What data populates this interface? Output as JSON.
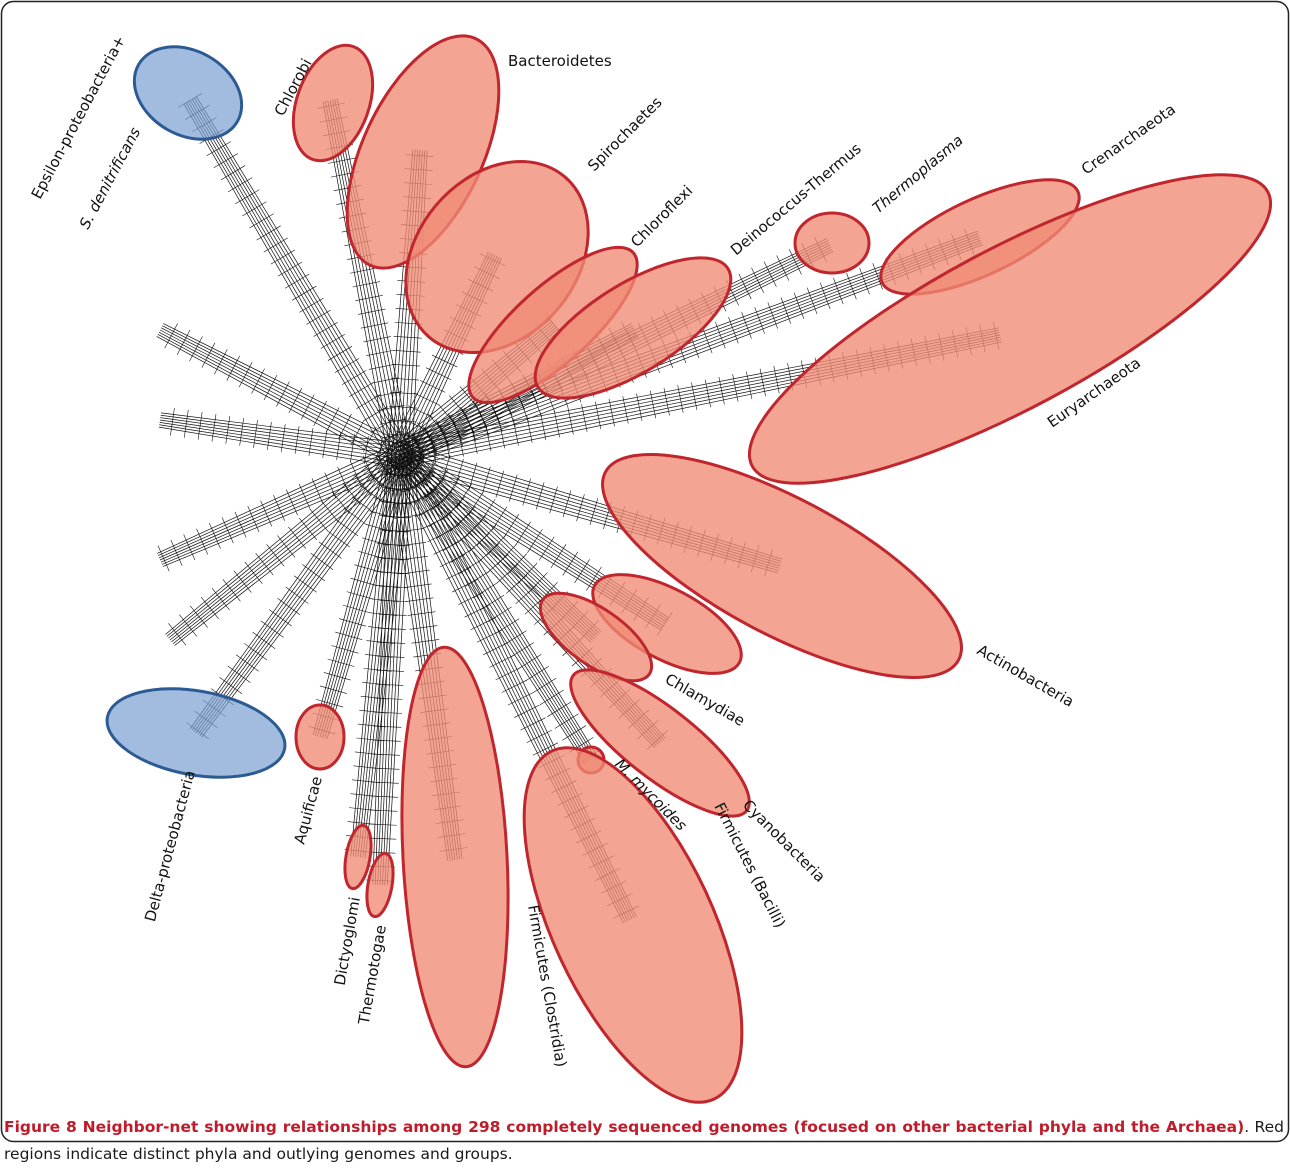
{
  "figure": {
    "labels": {
      "epsilon_line1": "Epsilon-proteobacteria+",
      "epsilon_line2": "S. denitrificans",
      "chlorobi": "Chlorobi",
      "bacteroidetes": "Bacteroidetes",
      "spirochaetes": "Spirochaetes",
      "chloroflexi": "Chloroflexi",
      "deinococcus": "Deinococcus-Thermus",
      "thermoplasma": "Thermoplasma",
      "crenarchaeota": "Crenarchaeota",
      "euryarchaeota": "Euryarchaeota",
      "actinobacteria": "Actinobacteria",
      "chlamydiae": "Chlamydiae",
      "cyanobacteria": "Cyanobacteria",
      "mycoides": "M. mycoides",
      "bacilli": "Firmicutes (Bacilli)",
      "clostridia": "Firmicutes (Clostridia)",
      "delta": "Delta-proteobacteria",
      "aquificae": "Aquificae",
      "dictyoglomi": "Dictyoglomi",
      "thermotogae": "Thermotogae"
    },
    "caption": {
      "title": "Figure 8 Neighbor-net showing relationships among 298 completely sequenced genomes (focused on other bacterial phyla and the Archaea)",
      "text": ". Red regions indicate distinct phyla and outlying genomes and groups."
    }
  }
}
